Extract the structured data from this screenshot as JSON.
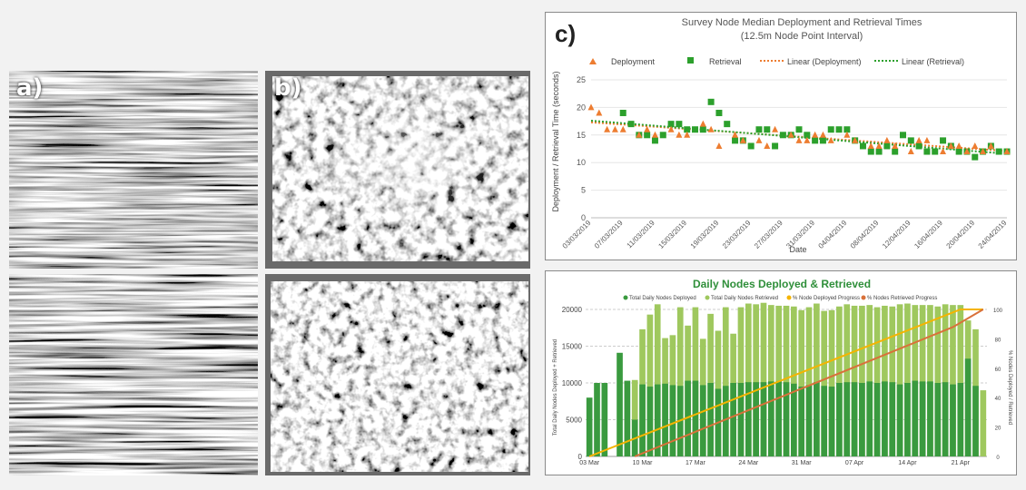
{
  "panels": {
    "a_label": "a)",
    "b_label": "b)",
    "c_label": "c)"
  },
  "colors": {
    "background": "#f2f2f2",
    "deployment": "#ed7d31",
    "retrieval": "#2ca02c",
    "deployed_bar": "#3a9a3f",
    "retrieved_bar": "#9fc85e",
    "deployed_progress": "#f5b400",
    "retrieved_progress": "#d9713a"
  },
  "chart_data": [
    {
      "type": "scatter",
      "title": "Survey Node Median Deployment and Retrieval Times",
      "subtitle": "(12.5m Node Point Interval)",
      "xlabel": "Date",
      "ylabel": "Deployment / Retrieval Time (seconds)",
      "ylim": [
        0,
        25
      ],
      "yticks": [
        0,
        5,
        10,
        15,
        20,
        25
      ],
      "x_tick_labels": [
        "03/03/2019",
        "07/03/2019",
        "11/03/2019",
        "15/03/2019",
        "19/03/2019",
        "23/03/2019",
        "27/03/2019",
        "31/03/2019",
        "04/04/2019",
        "08/04/2019",
        "12/04/2019",
        "16/04/2019",
        "20/04/2019",
        "24/04/2019"
      ],
      "x_start_date": "2019-03-03",
      "x_end_date": "2019-04-24",
      "legend": [
        "Deployment",
        "Retrieval",
        "Linear (Deployment)",
        "Linear (Retrieval)"
      ],
      "series": [
        {
          "name": "Deployment",
          "marker": "triangle",
          "points": [
            [
              "2019-03-03",
              20
            ],
            [
              "2019-03-04",
              19
            ],
            [
              "2019-03-05",
              16
            ],
            [
              "2019-03-06",
              16
            ],
            [
              "2019-03-07",
              16
            ],
            [
              "2019-03-09",
              15
            ],
            [
              "2019-03-10",
              16
            ],
            [
              "2019-03-11",
              15
            ],
            [
              "2019-03-13",
              16
            ],
            [
              "2019-03-14",
              15
            ],
            [
              "2019-03-15",
              15
            ],
            [
              "2019-03-17",
              17
            ],
            [
              "2019-03-18",
              16
            ],
            [
              "2019-03-19",
              13
            ],
            [
              "2019-03-21",
              15
            ],
            [
              "2019-03-22",
              14
            ],
            [
              "2019-03-24",
              14
            ],
            [
              "2019-03-25",
              13
            ],
            [
              "2019-03-26",
              16
            ],
            [
              "2019-03-28",
              15
            ],
            [
              "2019-03-29",
              14
            ],
            [
              "2019-03-30",
              14
            ],
            [
              "2019-03-31",
              15
            ],
            [
              "2019-04-01",
              15
            ],
            [
              "2019-04-02",
              14
            ],
            [
              "2019-04-04",
              15
            ],
            [
              "2019-04-05",
              14
            ],
            [
              "2019-04-07",
              13
            ],
            [
              "2019-04-08",
              13
            ],
            [
              "2019-04-09",
              14
            ],
            [
              "2019-04-10",
              13
            ],
            [
              "2019-04-12",
              12
            ],
            [
              "2019-04-13",
              14
            ],
            [
              "2019-04-14",
              14
            ],
            [
              "2019-04-16",
              12
            ],
            [
              "2019-04-17",
              13
            ],
            [
              "2019-04-18",
              13
            ],
            [
              "2019-04-19",
              12
            ],
            [
              "2019-04-20",
              13
            ],
            [
              "2019-04-21",
              12
            ],
            [
              "2019-04-22",
              13
            ],
            [
              "2019-04-24",
              12
            ]
          ]
        },
        {
          "name": "Retrieval",
          "marker": "square",
          "points": [
            [
              "2019-03-07",
              19
            ],
            [
              "2019-03-08",
              17
            ],
            [
              "2019-03-09",
              15
            ],
            [
              "2019-03-10",
              15
            ],
            [
              "2019-03-11",
              14
            ],
            [
              "2019-03-12",
              15
            ],
            [
              "2019-03-13",
              17
            ],
            [
              "2019-03-14",
              17
            ],
            [
              "2019-03-15",
              16
            ],
            [
              "2019-03-16",
              16
            ],
            [
              "2019-03-17",
              16
            ],
            [
              "2019-03-18",
              21
            ],
            [
              "2019-03-19",
              19
            ],
            [
              "2019-03-20",
              17
            ],
            [
              "2019-03-21",
              14
            ],
            [
              "2019-03-22",
              14
            ],
            [
              "2019-03-23",
              13
            ],
            [
              "2019-03-24",
              16
            ],
            [
              "2019-03-25",
              16
            ],
            [
              "2019-03-26",
              13
            ],
            [
              "2019-03-27",
              15
            ],
            [
              "2019-03-28",
              15
            ],
            [
              "2019-03-29",
              16
            ],
            [
              "2019-03-30",
              15
            ],
            [
              "2019-03-31",
              14
            ],
            [
              "2019-04-01",
              14
            ],
            [
              "2019-04-02",
              16
            ],
            [
              "2019-04-03",
              16
            ],
            [
              "2019-04-04",
              16
            ],
            [
              "2019-04-05",
              14
            ],
            [
              "2019-04-06",
              13
            ],
            [
              "2019-04-07",
              12
            ],
            [
              "2019-04-08",
              12
            ],
            [
              "2019-04-09",
              13
            ],
            [
              "2019-04-10",
              12
            ],
            [
              "2019-04-11",
              15
            ],
            [
              "2019-04-12",
              14
            ],
            [
              "2019-04-13",
              13
            ],
            [
              "2019-04-14",
              12
            ],
            [
              "2019-04-15",
              12
            ],
            [
              "2019-04-16",
              14
            ],
            [
              "2019-04-17",
              13
            ],
            [
              "2019-04-18",
              12
            ],
            [
              "2019-04-19",
              12
            ],
            [
              "2019-04-20",
              11
            ],
            [
              "2019-04-21",
              12
            ],
            [
              "2019-04-22",
              13
            ],
            [
              "2019-04-23",
              12
            ],
            [
              "2019-04-24",
              12
            ]
          ]
        }
      ],
      "trendlines": [
        {
          "name": "Linear (Deployment)",
          "from": [
            "2019-03-03",
            17.3
          ],
          "to": [
            "2019-04-24",
            12.1
          ]
        },
        {
          "name": "Linear (Retrieval)",
          "from": [
            "2019-03-03",
            17.6
          ],
          "to": [
            "2019-04-24",
            11.6
          ]
        }
      ]
    },
    {
      "type": "bar",
      "title": "Daily Nodes Deployed & Retrieved",
      "ylabel": "Total Daily Nodes Deployed + Retrieved",
      "y2label": "% Nodes Deployed / Retrieved",
      "ylim": [
        0,
        20000
      ],
      "yticks": [
        0,
        5000,
        10000,
        15000,
        20000
      ],
      "y2lim": [
        0,
        100
      ],
      "y2ticks": [
        0,
        20,
        40,
        60,
        80,
        100
      ],
      "x_tick_labels": [
        "03 Mar",
        "10 Mar",
        "17 Mar",
        "24 Mar",
        "31 Mar",
        "07 Apr",
        "14 Apr",
        "21 Apr"
      ],
      "legend": [
        "Total Daily Nodes Deployed",
        "Total Daily Nodes Retrieved",
        "% Node Deployed Progress",
        "% Nodes Retrieved Progress"
      ],
      "categories": [
        "2019-03-03",
        "2019-03-04",
        "2019-03-05",
        "2019-03-06",
        "2019-03-07",
        "2019-03-08",
        "2019-03-09",
        "2019-03-10",
        "2019-03-11",
        "2019-03-12",
        "2019-03-13",
        "2019-03-14",
        "2019-03-15",
        "2019-03-16",
        "2019-03-17",
        "2019-03-18",
        "2019-03-19",
        "2019-03-20",
        "2019-03-21",
        "2019-03-22",
        "2019-03-23",
        "2019-03-24",
        "2019-03-25",
        "2019-03-26",
        "2019-03-27",
        "2019-03-28",
        "2019-03-29",
        "2019-03-30",
        "2019-03-31",
        "2019-04-01",
        "2019-04-02",
        "2019-04-03",
        "2019-04-04",
        "2019-04-05",
        "2019-04-06",
        "2019-04-07",
        "2019-04-08",
        "2019-04-09",
        "2019-04-10",
        "2019-04-11",
        "2019-04-12",
        "2019-04-13",
        "2019-04-14",
        "2019-04-15",
        "2019-04-16",
        "2019-04-17",
        "2019-04-18",
        "2019-04-19",
        "2019-04-20",
        "2019-04-21",
        "2019-04-22",
        "2019-04-23",
        "2019-04-24"
      ],
      "series": [
        {
          "name": "Total Daily Nodes Deployed",
          "values": [
            8000,
            10000,
            10000,
            0,
            14100,
            10300,
            5000,
            9800,
            9500,
            9800,
            9900,
            9700,
            9600,
            10300,
            10300,
            9700,
            10000,
            9200,
            9600,
            10000,
            10000,
            10100,
            10100,
            10100,
            10200,
            10200,
            10100,
            9900,
            9500,
            9700,
            10100,
            9600,
            9500,
            10000,
            10100,
            10100,
            10000,
            10200,
            10000,
            10200,
            10100,
            9800,
            10000,
            10300,
            10200,
            10200,
            10000,
            10100,
            9800,
            10000,
            13300,
            9600,
            0
          ]
        },
        {
          "name": "Total Daily Nodes Retrieved",
          "values": [
            0,
            0,
            0,
            0,
            0,
            0,
            10400,
            17300,
            19300,
            20700,
            16100,
            16500,
            20300,
            17800,
            20300,
            16000,
            19400,
            17100,
            20300,
            16700,
            20300,
            20800,
            20700,
            20900,
            20600,
            20500,
            20500,
            20400,
            19900,
            20300,
            20800,
            19800,
            19900,
            20400,
            20700,
            20500,
            20500,
            20600,
            20300,
            20500,
            20400,
            20700,
            20800,
            20600,
            20600,
            20600,
            20400,
            20700,
            20600,
            20600,
            18500,
            17300,
            9000
          ]
        },
        {
          "name": "% Node Deployed Progress",
          "axis": "y2",
          "points": [
            [
              "2019-03-03",
              0
            ],
            [
              "2019-04-21",
              100
            ],
            [
              "2019-04-24",
              100
            ]
          ]
        },
        {
          "name": "% Nodes Retrieved Progress",
          "axis": "y2",
          "points": [
            [
              "2019-03-09",
              0
            ],
            [
              "2019-04-20",
              88
            ],
            [
              "2019-04-24",
              100
            ]
          ]
        }
      ]
    }
  ]
}
